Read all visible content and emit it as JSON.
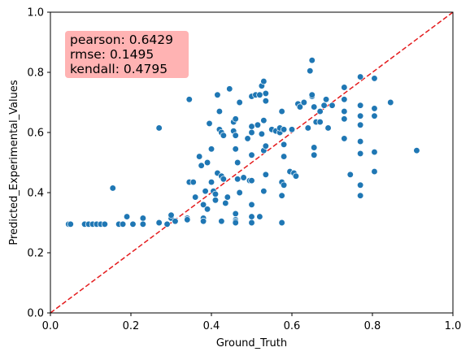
{
  "chart_data": {
    "type": "scatter",
    "xlabel": "Ground_Truth",
    "ylabel": "Predicted_Experimental_Values",
    "xlim": [
      0.0,
      1.0
    ],
    "ylim": [
      0.0,
      1.0
    ],
    "xticks": [
      "0.0",
      "0.2",
      "0.4",
      "0.6",
      "0.8",
      "1.0"
    ],
    "yticks": [
      "0.0",
      "0.2",
      "0.4",
      "0.6",
      "0.8",
      "1.0"
    ],
    "grid": false,
    "marker_color": "#1f77b4",
    "reference_line": {
      "style": "dashed",
      "color": "#e41a1c",
      "from": [
        0,
        0
      ],
      "to": [
        1,
        1
      ]
    },
    "stats_box": {
      "background": "#ffb3b3",
      "lines": [
        "pearson: 0.6429",
        "rmse: 0.1495",
        "kendall: 0.4795"
      ]
    },
    "points": [
      [
        0.045,
        0.295
      ],
      [
        0.05,
        0.295
      ],
      [
        0.085,
        0.295
      ],
      [
        0.095,
        0.295
      ],
      [
        0.105,
        0.295
      ],
      [
        0.115,
        0.295
      ],
      [
        0.125,
        0.295
      ],
      [
        0.135,
        0.295
      ],
      [
        0.155,
        0.415
      ],
      [
        0.17,
        0.295
      ],
      [
        0.18,
        0.295
      ],
      [
        0.19,
        0.32
      ],
      [
        0.205,
        0.295
      ],
      [
        0.23,
        0.315
      ],
      [
        0.23,
        0.295
      ],
      [
        0.27,
        0.615
      ],
      [
        0.27,
        0.3
      ],
      [
        0.29,
        0.295
      ],
      [
        0.3,
        0.315
      ],
      [
        0.3,
        0.325
      ],
      [
        0.31,
        0.305
      ],
      [
        0.34,
        0.315
      ],
      [
        0.34,
        0.31
      ],
      [
        0.345,
        0.71
      ],
      [
        0.345,
        0.435
      ],
      [
        0.355,
        0.435
      ],
      [
        0.36,
        0.385
      ],
      [
        0.37,
        0.52
      ],
      [
        0.375,
        0.49
      ],
      [
        0.38,
        0.36
      ],
      [
        0.38,
        0.315
      ],
      [
        0.38,
        0.305
      ],
      [
        0.385,
        0.405
      ],
      [
        0.39,
        0.345
      ],
      [
        0.39,
        0.5
      ],
      [
        0.395,
        0.63
      ],
      [
        0.4,
        0.545
      ],
      [
        0.4,
        0.435
      ],
      [
        0.405,
        0.405
      ],
      [
        0.41,
        0.395
      ],
      [
        0.41,
        0.375
      ],
      [
        0.415,
        0.725
      ],
      [
        0.415,
        0.465
      ],
      [
        0.42,
        0.61
      ],
      [
        0.42,
        0.67
      ],
      [
        0.425,
        0.6
      ],
      [
        0.425,
        0.455
      ],
      [
        0.425,
        0.305
      ],
      [
        0.43,
        0.445
      ],
      [
        0.43,
        0.59
      ],
      [
        0.435,
        0.365
      ],
      [
        0.44,
        0.385
      ],
      [
        0.445,
        0.745
      ],
      [
        0.455,
        0.605
      ],
      [
        0.455,
        0.635
      ],
      [
        0.46,
        0.59
      ],
      [
        0.46,
        0.645
      ],
      [
        0.46,
        0.545
      ],
      [
        0.46,
        0.33
      ],
      [
        0.46,
        0.31
      ],
      [
        0.46,
        0.305
      ],
      [
        0.46,
        0.3
      ],
      [
        0.465,
        0.5
      ],
      [
        0.465,
        0.445
      ],
      [
        0.47,
        0.4
      ],
      [
        0.47,
        0.7
      ],
      [
        0.48,
        0.45
      ],
      [
        0.49,
        0.58
      ],
      [
        0.495,
        0.44
      ],
      [
        0.5,
        0.72
      ],
      [
        0.5,
        0.62
      ],
      [
        0.5,
        0.6
      ],
      [
        0.5,
        0.525
      ],
      [
        0.5,
        0.44
      ],
      [
        0.5,
        0.36
      ],
      [
        0.5,
        0.32
      ],
      [
        0.5,
        0.3
      ],
      [
        0.51,
        0.725
      ],
      [
        0.515,
        0.625
      ],
      [
        0.52,
        0.32
      ],
      [
        0.52,
        0.725
      ],
      [
        0.525,
        0.755
      ],
      [
        0.525,
        0.595
      ],
      [
        0.53,
        0.77
      ],
      [
        0.53,
        0.64
      ],
      [
        0.53,
        0.54
      ],
      [
        0.53,
        0.405
      ],
      [
        0.535,
        0.705
      ],
      [
        0.535,
        0.73
      ],
      [
        0.535,
        0.555
      ],
      [
        0.535,
        0.46
      ],
      [
        0.55,
        0.61
      ],
      [
        0.56,
        0.605
      ],
      [
        0.57,
        0.6
      ],
      [
        0.57,
        0.615
      ],
      [
        0.575,
        0.67
      ],
      [
        0.575,
        0.435
      ],
      [
        0.575,
        0.39
      ],
      [
        0.575,
        0.3
      ],
      [
        0.58,
        0.61
      ],
      [
        0.58,
        0.56
      ],
      [
        0.58,
        0.52
      ],
      [
        0.58,
        0.425
      ],
      [
        0.595,
        0.47
      ],
      [
        0.6,
        0.61
      ],
      [
        0.605,
        0.465
      ],
      [
        0.61,
        0.455
      ],
      [
        0.615,
        0.695
      ],
      [
        0.62,
        0.685
      ],
      [
        0.63,
        0.7
      ],
      [
        0.64,
        0.615
      ],
      [
        0.645,
        0.805
      ],
      [
        0.65,
        0.84
      ],
      [
        0.65,
        0.72
      ],
      [
        0.65,
        0.725
      ],
      [
        0.655,
        0.685
      ],
      [
        0.655,
        0.55
      ],
      [
        0.655,
        0.525
      ],
      [
        0.66,
        0.635
      ],
      [
        0.67,
        0.635
      ],
      [
        0.67,
        0.67
      ],
      [
        0.68,
        0.69
      ],
      [
        0.685,
        0.71
      ],
      [
        0.69,
        0.615
      ],
      [
        0.7,
        0.69
      ],
      [
        0.73,
        0.75
      ],
      [
        0.73,
        0.71
      ],
      [
        0.73,
        0.67
      ],
      [
        0.73,
        0.645
      ],
      [
        0.73,
        0.58
      ],
      [
        0.745,
        0.46
      ],
      [
        0.77,
        0.785
      ],
      [
        0.77,
        0.69
      ],
      [
        0.77,
        0.655
      ],
      [
        0.77,
        0.625
      ],
      [
        0.77,
        0.57
      ],
      [
        0.77,
        0.53
      ],
      [
        0.77,
        0.425
      ],
      [
        0.77,
        0.39
      ],
      [
        0.805,
        0.78
      ],
      [
        0.805,
        0.68
      ],
      [
        0.805,
        0.655
      ],
      [
        0.805,
        0.535
      ],
      [
        0.805,
        0.47
      ],
      [
        0.845,
        0.7
      ],
      [
        0.91,
        0.54
      ]
    ]
  }
}
